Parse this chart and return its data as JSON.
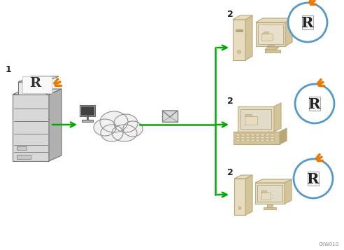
{
  "background_color": "#ffffff",
  "arrow_color": "#00aa00",
  "callout_circle_color": "#5599cc",
  "callout_bg_color": "#ffffff",
  "orange_spark_color": "#ee7700",
  "label_1": "1",
  "label_2": "2",
  "watermark": "CKW010",
  "tan_light": "#e8dcc0",
  "tan_mid": "#d4c49a",
  "tan_dark": "#b8a878",
  "tan_shadow": "#a09060",
  "gray_light": "#d8d8d8",
  "gray_mid": "#b0b0b0",
  "gray_dark": "#707070",
  "cloud_fill": "#f0f0f0",
  "cloud_edge": "#909090",
  "envelope_fill": "#d8d8d8",
  "envelope_edge": "#808080",
  "paper_fill": "#f4f4f4",
  "paper_edge": "#aaaaaa"
}
